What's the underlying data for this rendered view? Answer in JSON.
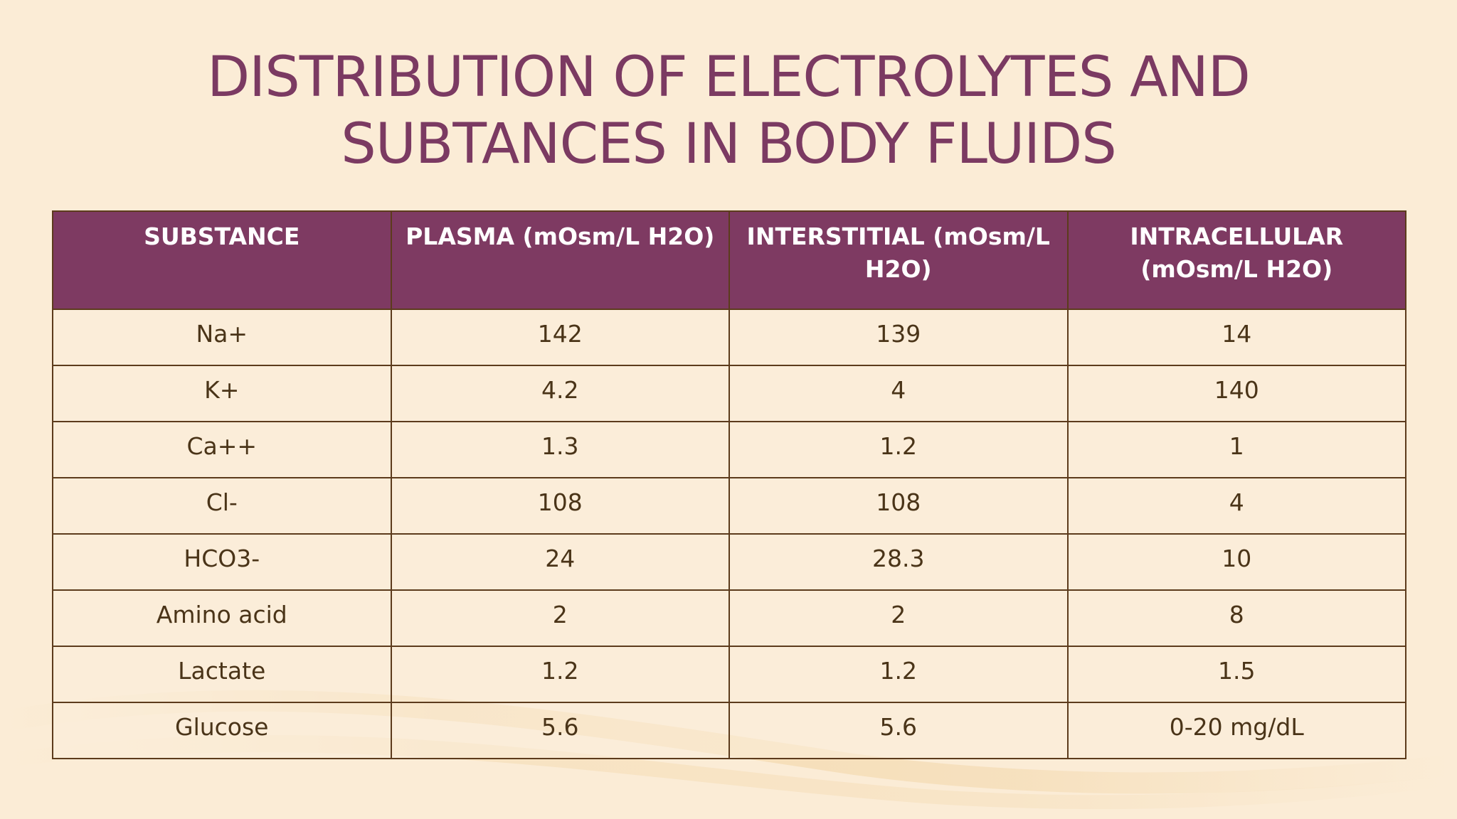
{
  "slide": {
    "title_line1": "DISTRIBUTION OF ELECTROLYTES AND",
    "title_line2": "SUBTANCES IN BODY FLUIDS"
  },
  "colors": {
    "background": "#fbecd6",
    "title": "#7b3a62",
    "header_fill": "#7e3a62",
    "grid": "#5c3b1c",
    "cell_text": "#4a3418"
  },
  "table": {
    "headers": [
      "SUBSTANCE",
      "PLASMA (mOsm/L H2O)",
      "INTERSTITIAL (mOsm/L H2O)",
      "INTRACELLULAR (mOsm/L H2O)"
    ],
    "rows": [
      [
        "Na+",
        "142",
        "139",
        "14"
      ],
      [
        "K+",
        "4.2",
        "4",
        "140"
      ],
      [
        "Ca++",
        "1.3",
        "1.2",
        "1"
      ],
      [
        "Cl-",
        "108",
        "108",
        "4"
      ],
      [
        "HCO3-",
        "24",
        "28.3",
        "10"
      ],
      [
        "Amino acid",
        "2",
        "2",
        "8"
      ],
      [
        "Lactate",
        "1.2",
        "1.2",
        "1.5"
      ],
      [
        "Glucose",
        "5.6",
        "5.6",
        "0-20 mg/dL"
      ]
    ]
  }
}
